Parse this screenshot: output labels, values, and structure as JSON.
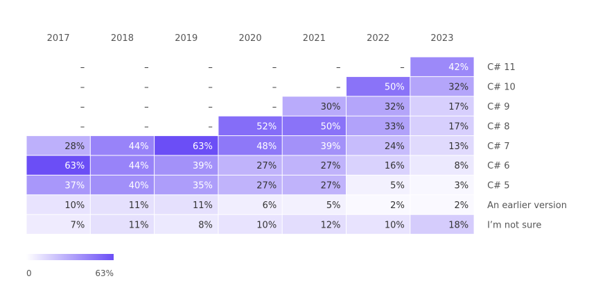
{
  "chart_data": {
    "type": "heatmap",
    "columns": [
      "2017",
      "2018",
      "2019",
      "2020",
      "2021",
      "2022",
      "2023"
    ],
    "rows": [
      "C# 11",
      "C# 10",
      "C# 9",
      "C# 8",
      "C# 7",
      "C# 6",
      "C# 5",
      "An earlier version",
      "I’m not sure"
    ],
    "values": [
      [
        null,
        null,
        null,
        null,
        null,
        null,
        42
      ],
      [
        null,
        null,
        null,
        null,
        null,
        50,
        32
      ],
      [
        null,
        null,
        null,
        null,
        30,
        32,
        17
      ],
      [
        null,
        null,
        null,
        52,
        50,
        33,
        17
      ],
      [
        28,
        44,
        63,
        48,
        39,
        24,
        13
      ],
      [
        63,
        44,
        39,
        27,
        27,
        16,
        8
      ],
      [
        37,
        40,
        35,
        27,
        27,
        5,
        3
      ],
      [
        10,
        11,
        11,
        6,
        5,
        2,
        2
      ],
      [
        7,
        11,
        8,
        10,
        12,
        10,
        18
      ]
    ],
    "cell_labels": [
      [
        "–",
        "–",
        "–",
        "–",
        "–",
        "–",
        "42%"
      ],
      [
        "–",
        "–",
        "–",
        "–",
        "–",
        "50%",
        "32%"
      ],
      [
        "–",
        "–",
        "–",
        "–",
        "30%",
        "32%",
        "17%"
      ],
      [
        "–",
        "–",
        "–",
        "52%",
        "50%",
        "33%",
        "17%"
      ],
      [
        "28%",
        "44%",
        "63%",
        "48%",
        "39%",
        "24%",
        "13%"
      ],
      [
        "63%",
        "44%",
        "39%",
        "27%",
        "27%",
        "16%",
        "8%"
      ],
      [
        "37%",
        "40%",
        "35%",
        "27%",
        "27%",
        "5%",
        "3%"
      ],
      [
        "10%",
        "11%",
        "11%",
        "6%",
        "5%",
        "2%",
        "2%"
      ],
      [
        "7%",
        "11%",
        "8%",
        "10%",
        "12%",
        "10%",
        "18%"
      ]
    ],
    "color_scale": {
      "min": 0,
      "max": 63,
      "min_color": "#ffffff",
      "max_color": "#6b4ef6"
    },
    "legend": {
      "min_label": "0",
      "max_label": "63%"
    }
  }
}
